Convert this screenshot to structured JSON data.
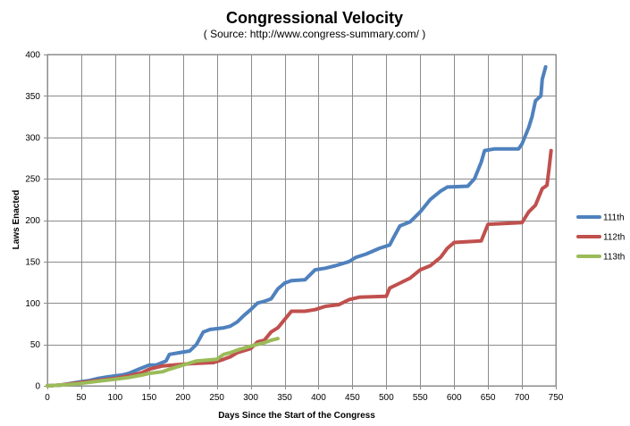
{
  "chart_data": {
    "type": "line",
    "title": "Congressional Velocity",
    "subtitle": "( Source: http://www.congress-summary.com/ )",
    "xlabel": "Days Since the Start of the Congress",
    "ylabel": "Laws Enacted",
    "xlim": [
      0,
      750
    ],
    "ylim": [
      0,
      400
    ],
    "x_ticks": [
      0,
      50,
      100,
      150,
      200,
      250,
      300,
      350,
      400,
      450,
      500,
      550,
      600,
      650,
      700,
      750
    ],
    "y_ticks": [
      0,
      50,
      100,
      150,
      200,
      250,
      300,
      350,
      400
    ],
    "grid": true,
    "legend_position": "right",
    "series": [
      {
        "name": "111th",
        "color": "#4f81bd",
        "points": [
          [
            0,
            0
          ],
          [
            20,
            1
          ],
          [
            35,
            3
          ],
          [
            50,
            5
          ],
          [
            60,
            6
          ],
          [
            75,
            9
          ],
          [
            90,
            11
          ],
          [
            110,
            13
          ],
          [
            120,
            15
          ],
          [
            135,
            20
          ],
          [
            150,
            25
          ],
          [
            160,
            25
          ],
          [
            175,
            30
          ],
          [
            180,
            38
          ],
          [
            195,
            40
          ],
          [
            210,
            42
          ],
          [
            220,
            50
          ],
          [
            230,
            65
          ],
          [
            240,
            68
          ],
          [
            260,
            70
          ],
          [
            270,
            72
          ],
          [
            280,
            77
          ],
          [
            290,
            85
          ],
          [
            300,
            92
          ],
          [
            310,
            100
          ],
          [
            320,
            102
          ],
          [
            330,
            105
          ],
          [
            340,
            117
          ],
          [
            350,
            124
          ],
          [
            360,
            127
          ],
          [
            380,
            128
          ],
          [
            395,
            140
          ],
          [
            410,
            142
          ],
          [
            425,
            145
          ],
          [
            445,
            150
          ],
          [
            455,
            155
          ],
          [
            470,
            159
          ],
          [
            490,
            166
          ],
          [
            505,
            170
          ],
          [
            510,
            178
          ],
          [
            520,
            193
          ],
          [
            535,
            198
          ],
          [
            550,
            210
          ],
          [
            565,
            225
          ],
          [
            580,
            235
          ],
          [
            590,
            240
          ],
          [
            620,
            241
          ],
          [
            630,
            250
          ],
          [
            640,
            270
          ],
          [
            645,
            284
          ],
          [
            660,
            286
          ],
          [
            695,
            286
          ],
          [
            700,
            292
          ],
          [
            710,
            312
          ],
          [
            715,
            325
          ],
          [
            720,
            344
          ],
          [
            728,
            350
          ],
          [
            730,
            370
          ],
          [
            735,
            385
          ]
        ]
      },
      {
        "name": "112th",
        "color": "#c0504d",
        "points": [
          [
            0,
            0
          ],
          [
            20,
            1
          ],
          [
            40,
            3
          ],
          [
            60,
            5
          ],
          [
            80,
            7
          ],
          [
            100,
            9
          ],
          [
            120,
            12
          ],
          [
            140,
            16
          ],
          [
            150,
            20
          ],
          [
            170,
            24
          ],
          [
            200,
            26
          ],
          [
            215,
            27
          ],
          [
            245,
            28
          ],
          [
            260,
            32
          ],
          [
            270,
            35
          ],
          [
            280,
            40
          ],
          [
            300,
            45
          ],
          [
            310,
            53
          ],
          [
            320,
            55
          ],
          [
            330,
            65
          ],
          [
            340,
            70
          ],
          [
            350,
            80
          ],
          [
            360,
            90
          ],
          [
            380,
            90
          ],
          [
            395,
            92
          ],
          [
            410,
            96
          ],
          [
            430,
            98
          ],
          [
            445,
            104
          ],
          [
            460,
            107
          ],
          [
            500,
            108
          ],
          [
            505,
            118
          ],
          [
            520,
            124
          ],
          [
            535,
            130
          ],
          [
            550,
            140
          ],
          [
            565,
            145
          ],
          [
            580,
            155
          ],
          [
            590,
            166
          ],
          [
            600,
            173
          ],
          [
            640,
            175
          ],
          [
            650,
            195
          ],
          [
            700,
            197
          ],
          [
            710,
            210
          ],
          [
            720,
            218
          ],
          [
            730,
            238
          ],
          [
            737,
            242
          ],
          [
            740,
            262
          ],
          [
            743,
            284
          ]
        ]
      },
      {
        "name": "113th",
        "color": "#9bbb59",
        "points": [
          [
            0,
            0
          ],
          [
            20,
            1
          ],
          [
            40,
            2
          ],
          [
            60,
            4
          ],
          [
            80,
            6
          ],
          [
            100,
            8
          ],
          [
            120,
            10
          ],
          [
            140,
            13
          ],
          [
            150,
            15
          ],
          [
            170,
            17
          ],
          [
            180,
            20
          ],
          [
            200,
            25
          ],
          [
            220,
            30
          ],
          [
            250,
            32
          ],
          [
            260,
            38
          ],
          [
            270,
            40
          ],
          [
            280,
            43
          ],
          [
            300,
            48
          ],
          [
            320,
            52
          ],
          [
            330,
            55
          ],
          [
            340,
            57
          ]
        ]
      }
    ]
  }
}
